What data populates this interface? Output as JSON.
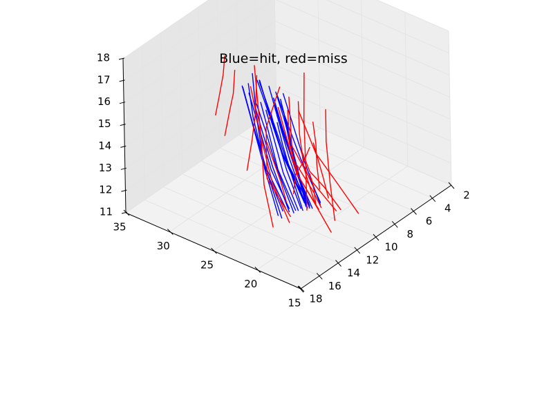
{
  "chart_data": {
    "type": "line",
    "projection": "3d",
    "title": "Blue=hit, red=miss",
    "xlabel": "",
    "ylabel": "",
    "zlabel": "",
    "xlim": [
      15,
      35
    ],
    "ylim": [
      2,
      18
    ],
    "zlim": [
      11,
      18
    ],
    "xticks": [
      "15",
      "20",
      "25",
      "30",
      "35"
    ],
    "yticks": [
      "2",
      "4",
      "6",
      "8",
      "10",
      "12",
      "14",
      "16",
      "18"
    ],
    "zticks": [
      "11",
      "12",
      "13",
      "14",
      "15",
      "16",
      "17",
      "18"
    ],
    "grid": true,
    "colors": {
      "hit": "#0000ff",
      "miss": "#ff0000",
      "pane_left": "#e6e6e6",
      "pane_right": "#eeeeee",
      "pane_floor": "#f2f2f2"
    },
    "series": [
      {
        "category": "hit",
        "traces": [
          [
            [
              23.6,
              12.4,
              11.2
            ],
            [
              25.3,
              12.2,
              13.0
            ],
            [
              26.8,
              11.6,
              15.0
            ],
            [
              27.6,
              11.2,
              16.6
            ]
          ],
          [
            [
              23.3,
              12.3,
              11.1
            ],
            [
              25.0,
              12.4,
              13.2
            ],
            [
              26.5,
              12.2,
              15.1
            ],
            [
              27.1,
              12.1,
              16.5
            ]
          ],
          [
            [
              23.5,
              12.0,
              11.3
            ],
            [
              24.8,
              12.8,
              13.5
            ],
            [
              25.8,
              13.1,
              15.5
            ],
            [
              26.6,
              13.2,
              16.8
            ]
          ],
          [
            [
              23.4,
              11.8,
              11.4
            ],
            [
              24.6,
              12.7,
              13.3
            ],
            [
              25.4,
              13.3,
              15.4
            ],
            [
              26.2,
              13.5,
              16.9
            ]
          ],
          [
            [
              23.3,
              11.5,
              11.3
            ],
            [
              24.2,
              12.5,
              13.2
            ],
            [
              24.8,
              13.2,
              15.3
            ],
            [
              25.4,
              13.6,
              16.8
            ]
          ],
          [
            [
              23.2,
              11.6,
              11.2
            ],
            [
              23.9,
              12.6,
              13.4
            ],
            [
              24.3,
              13.4,
              15.4
            ],
            [
              24.8,
              13.7,
              16.6
            ]
          ],
          [
            [
              23.0,
              11.3,
              11.1
            ],
            [
              23.5,
              12.6,
              13.5
            ],
            [
              23.7,
              13.5,
              15.4
            ],
            [
              24.0,
              14.1,
              16.7
            ]
          ],
          [
            [
              22.9,
              11.2,
              11.2
            ],
            [
              23.1,
              12.8,
              13.5
            ],
            [
              23.2,
              13.7,
              15.6
            ],
            [
              23.4,
              14.2,
              16.9
            ]
          ],
          [
            [
              22.7,
              11.1,
              11.2
            ],
            [
              22.6,
              12.7,
              13.4
            ],
            [
              22.6,
              13.7,
              15.4
            ],
            [
              22.7,
              14.3,
              16.7
            ]
          ],
          [
            [
              22.5,
              11.0,
              11.3
            ],
            [
              22.2,
              12.7,
              13.6
            ],
            [
              22.0,
              13.9,
              15.6
            ],
            [
              21.8,
              14.6,
              16.8
            ]
          ],
          [
            [
              22.4,
              10.9,
              11.2
            ],
            [
              21.8,
              12.5,
              13.3
            ],
            [
              21.4,
              13.8,
              15.2
            ],
            [
              21.1,
              14.6,
              16.5
            ]
          ],
          [
            [
              22.2,
              10.7,
              11.4
            ],
            [
              21.5,
              12.3,
              13.6
            ],
            [
              20.9,
              13.6,
              15.5
            ],
            [
              20.5,
              14.4,
              16.9
            ]
          ],
          [
            [
              22.3,
              10.5,
              11.2
            ],
            [
              21.9,
              11.9,
              13.4
            ],
            [
              21.5,
              13.0,
              15.5
            ],
            [
              21.2,
              13.9,
              16.9
            ]
          ],
          [
            [
              22.5,
              10.4,
              11.3
            ],
            [
              22.4,
              11.6,
              13.5
            ],
            [
              22.2,
              12.6,
              15.6
            ],
            [
              22.1,
              13.3,
              17.0
            ]
          ],
          [
            [
              22.7,
              10.2,
              11.2
            ],
            [
              22.9,
              11.2,
              13.6
            ],
            [
              23.2,
              12.0,
              15.6
            ],
            [
              23.4,
              12.6,
              16.9
            ]
          ],
          [
            [
              23.7,
              9.5,
              11.0
            ],
            [
              25.7,
              9.9,
              12.9
            ],
            [
              26.9,
              10.1,
              14.6
            ],
            [
              27.8,
              10.3,
              16.0
            ]
          ],
          [
            [
              23.5,
              9.7,
              11.0
            ],
            [
              25.4,
              10.2,
              13.0
            ],
            [
              26.6,
              10.5,
              14.8
            ],
            [
              27.5,
              10.8,
              16.2
            ]
          ],
          [
            [
              23.9,
              9.2,
              11.0
            ],
            [
              26.1,
              9.6,
              12.8
            ],
            [
              27.3,
              9.8,
              14.5
            ],
            [
              28.2,
              9.9,
              15.8
            ]
          ],
          [
            [
              23.3,
              9.9,
              11.1
            ],
            [
              24.9,
              10.4,
              13.1
            ],
            [
              26.0,
              10.8,
              14.9
            ],
            [
              26.9,
              11.1,
              16.3
            ]
          ],
          [
            [
              23.0,
              10.0,
              11.0
            ],
            [
              24.2,
              10.6,
              13.2
            ],
            [
              25.0,
              11.0,
              15.0
            ],
            [
              25.6,
              11.3,
              16.4
            ]
          ],
          [
            [
              22.8,
              9.8,
              11.0
            ],
            [
              23.8,
              10.4,
              12.9
            ],
            [
              24.6,
              10.9,
              14.6
            ],
            [
              25.2,
              11.2,
              15.9
            ]
          ],
          [
            [
              22.6,
              10.0,
              11.0
            ],
            [
              23.1,
              11.0,
              13.0
            ],
            [
              23.6,
              11.7,
              14.8
            ],
            [
              24.0,
              12.2,
              16.1
            ]
          ],
          [
            [
              22.4,
              9.9,
              11.0
            ],
            [
              22.6,
              11.2,
              12.9
            ],
            [
              22.9,
              12.1,
              14.6
            ],
            [
              23.2,
              12.7,
              15.9
            ]
          ],
          [
            [
              22.9,
              8.6,
              10.7
            ],
            [
              24.9,
              8.4,
              12.3
            ],
            [
              26.4,
              8.2,
              13.7
            ],
            [
              27.5,
              8.1,
              14.8
            ]
          ],
          [
            [
              23.1,
              8.4,
              10.7
            ],
            [
              25.5,
              8.2,
              12.2
            ],
            [
              27.2,
              8.0,
              13.5
            ],
            [
              28.4,
              7.9,
              14.5
            ]
          ]
        ]
      },
      {
        "category": "miss",
        "traces": [
          [
            [
              30.5,
              12.5,
              14.6
            ],
            [
              30.4,
              12.1,
              15.5
            ],
            [
              30.2,
              11.9,
              16.3
            ],
            [
              30.2,
              11.7,
              17.1
            ]
          ],
          [
            [
              29.8,
              12.2,
              13.7
            ],
            [
              29.6,
              11.8,
              14.8
            ],
            [
              29.4,
              11.6,
              15.5
            ],
            [
              29.4,
              11.4,
              16.5
            ]
          ],
          [
            [
              27.2,
              12.3,
              12.6
            ],
            [
              27.0,
              11.9,
              13.9
            ],
            [
              26.9,
              11.6,
              15.0
            ],
            [
              27.1,
              11.2,
              16.6
            ]
          ],
          [
            [
              23.0,
              13.5,
              11.1
            ],
            [
              24.5,
              13.0,
              12.6
            ],
            [
              25.6,
              12.2,
              14.2
            ],
            [
              26.7,
              11.8,
              17.3
            ]
          ],
          [
            [
              22.1,
              12.6,
              11.2
            ],
            [
              24.0,
              12.6,
              12.7
            ],
            [
              25.4,
              12.4,
              14.4
            ],
            [
              26.4,
              12.5,
              16.6
            ]
          ],
          [
            [
              22.4,
              12.2,
              11.3
            ],
            [
              23.6,
              13.5,
              13.2
            ],
            [
              23.6,
              13.5,
              15.5
            ],
            [
              22.5,
              13.0,
              17.4
            ]
          ],
          [
            [
              20.0,
              11.4,
              11.8
            ],
            [
              21.4,
              12.2,
              13.3
            ],
            [
              21.7,
              12.8,
              14.9
            ],
            [
              21.4,
              13.2,
              16.6
            ]
          ],
          [
            [
              19.1,
              10.4,
              11.6
            ],
            [
              20.7,
              11.6,
              13.1
            ],
            [
              20.9,
              13.3,
              15.1
            ],
            [
              19.7,
              14.6,
              17.9
            ]
          ],
          [
            [
              18.4,
              11.6,
              11.1
            ],
            [
              19.4,
              12.4,
              12.5
            ],
            [
              20.1,
              13.6,
              14.1
            ],
            [
              20.3,
              15.2,
              17.5
            ]
          ],
          [
            [
              18.2,
              8.9,
              11.2
            ],
            [
              19.4,
              10.1,
              12.8
            ],
            [
              20.0,
              11.6,
              14.4
            ],
            [
              20.6,
              12.8,
              16.6
            ]
          ],
          [
            [
              18.9,
              10.1,
              11.6
            ],
            [
              19.7,
              11.1,
              12.8
            ],
            [
              20.2,
              12.1,
              13.7
            ],
            [
              20.2,
              13.0,
              15.0
            ]
          ],
          [
            [
              22.8,
              10.1,
              10.9
            ],
            [
              24.7,
              8.4,
              11.8
            ],
            [
              26.8,
              6.6,
              13.3
            ],
            [
              27.9,
              5.5,
              14.9
            ]
          ],
          [
            [
              20.7,
              9.1,
              10.5
            ],
            [
              22.6,
              7.8,
              11.5
            ],
            [
              24.4,
              6.5,
              12.7
            ],
            [
              25.6,
              5.4,
              13.6
            ]
          ],
          [
            [
              23.9,
              8.2,
              10.4
            ],
            [
              25.9,
              7.5,
              11.5
            ],
            [
              26.8,
              7.1,
              12.8
            ],
            [
              27.2,
              6.8,
              14.1
            ]
          ],
          [
            [
              25.2,
              9.3,
              11.0
            ],
            [
              25.2,
              9.0,
              11.8
            ],
            [
              24.6,
              8.7,
              12.4
            ],
            [
              24.0,
              8.6,
              13.1
            ]
          ],
          [
            [
              22.2,
              9.7,
              11.1
            ],
            [
              21.4,
              10.6,
              12.2
            ],
            [
              20.6,
              11.5,
              13.0
            ],
            [
              19.8,
              12.5,
              13.8
            ]
          ],
          [
            [
              23.6,
              8.0,
              11.1
            ],
            [
              24.2,
              7.7,
              12.0
            ],
            [
              24.6,
              7.4,
              12.8
            ],
            [
              25.0,
              7.3,
              13.7
            ]
          ],
          [
            [
              21.4,
              9.1,
              11.4
            ],
            [
              21.5,
              9.5,
              12.4
            ],
            [
              21.6,
              9.9,
              13.3
            ],
            [
              21.7,
              10.3,
              14.2
            ]
          ],
          [
            [
              20.5,
              10.7,
              11.6
            ],
            [
              20.8,
              11.2,
              12.4
            ],
            [
              21.2,
              11.7,
              13.1
            ],
            [
              21.6,
              12.2,
              13.8
            ]
          ],
          [
            [
              24.6,
              10.6,
              11.1
            ],
            [
              25.1,
              10.7,
              12.0
            ],
            [
              25.7,
              10.9,
              12.9
            ],
            [
              26.2,
              11.1,
              13.7
            ]
          ]
        ]
      }
    ]
  }
}
